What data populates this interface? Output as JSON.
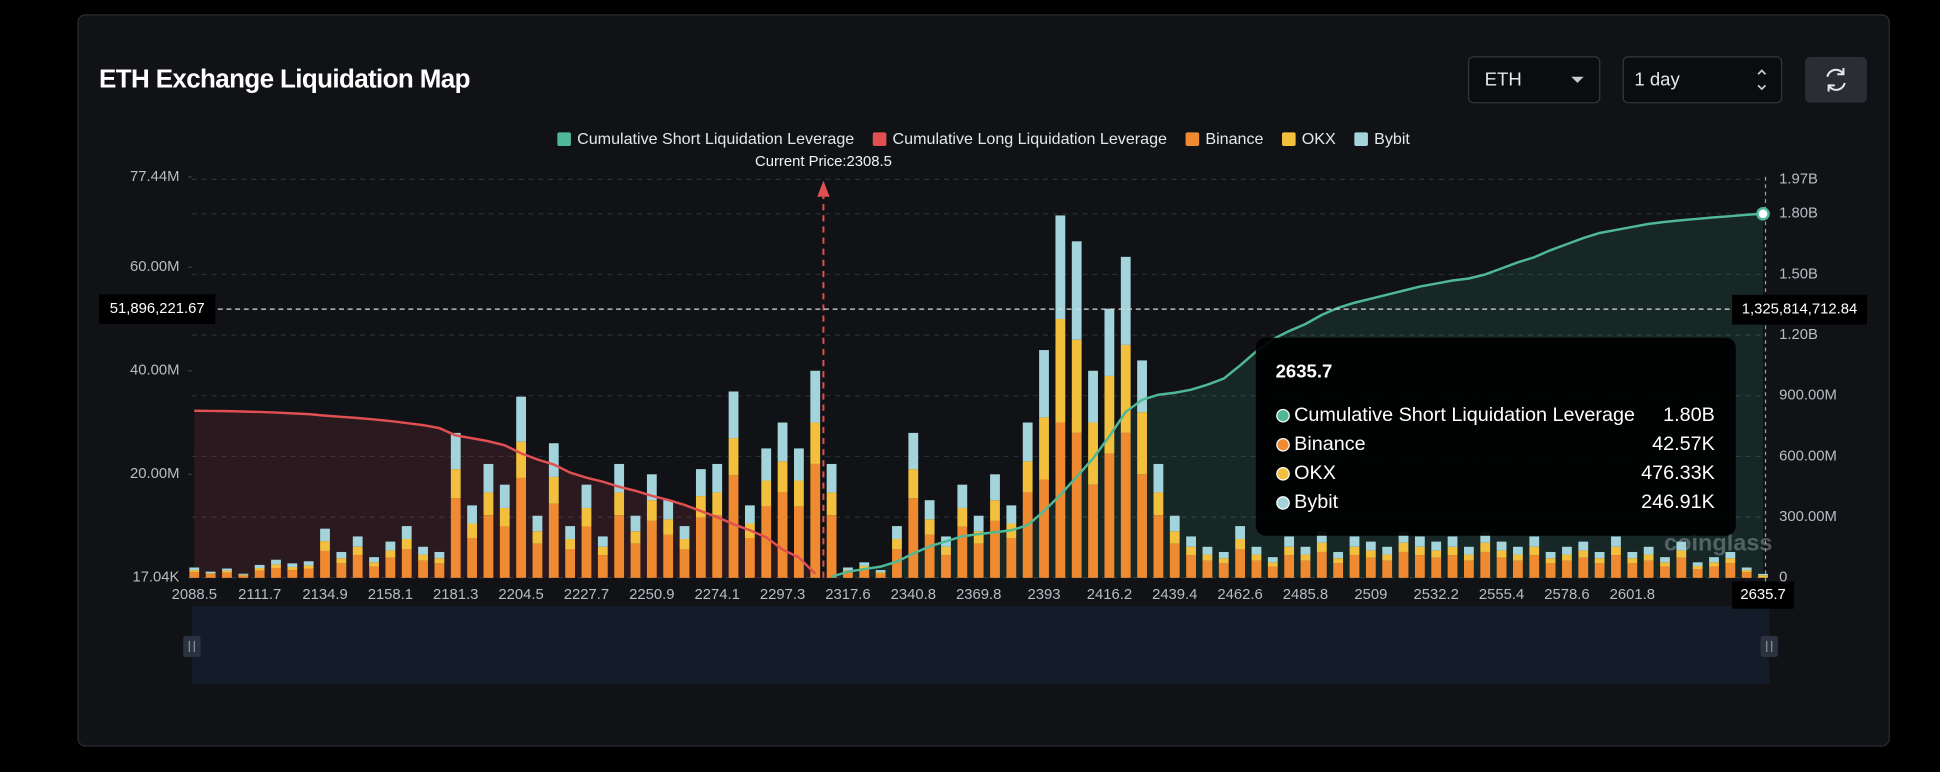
{
  "controls": {
    "symbol": "ETH",
    "interval": "1 day"
  },
  "chart_data": {
    "type": "bar",
    "stacked": true,
    "title": "ETH Exchange Liquidation Map",
    "annotation": "Current Price:2308.5",
    "watermark": "coinglass",
    "categories": [
      2088.5,
      null,
      null,
      null,
      2111.7,
      null,
      null,
      null,
      2134.9,
      null,
      null,
      null,
      2158.1,
      null,
      null,
      null,
      2181.3,
      null,
      null,
      null,
      2204.5,
      null,
      null,
      null,
      2227.7,
      null,
      null,
      null,
      2250.9,
      null,
      null,
      null,
      2274.1,
      null,
      null,
      null,
      2297.3,
      null,
      null,
      null,
      2317.6,
      null,
      null,
      null,
      2340.8,
      null,
      null,
      null,
      2369.8,
      null,
      null,
      null,
      2393,
      null,
      null,
      null,
      2416.2,
      null,
      null,
      null,
      2439.4,
      null,
      null,
      null,
      2462.6,
      null,
      null,
      null,
      2485.8,
      null,
      null,
      null,
      2509,
      null,
      null,
      null,
      2532.2,
      null,
      null,
      null,
      2555.4,
      null,
      null,
      null,
      2578.6,
      null,
      null,
      null,
      2601.8,
      null,
      null,
      null,
      null,
      null,
      null,
      null,
      2635.7
    ],
    "series": [
      {
        "name": "Cumulative Short Liquidation Leverage",
        "color": "#4fb896",
        "type": "line",
        "axis": "y2",
        "values": [
          null,
          null,
          null,
          null,
          null,
          null,
          null,
          null,
          null,
          null,
          null,
          null,
          null,
          null,
          null,
          null,
          null,
          null,
          null,
          null,
          null,
          null,
          null,
          null,
          null,
          null,
          null,
          null,
          null,
          null,
          null,
          null,
          null,
          null,
          null,
          null,
          null,
          null,
          null,
          5000000,
          30000000,
          43000000,
          55000000,
          80000000,
          120000000,
          155000000,
          180000000,
          205000000,
          216000000,
          225000000,
          235000000,
          260000000,
          330000000,
          410000000,
          500000000,
          590000000,
          700000000,
          820000000,
          880000000,
          905000000,
          915000000,
          930000000,
          955000000,
          985000000,
          1050000000,
          1120000000,
          1180000000,
          1220000000,
          1255000000,
          1300000000,
          1335000000,
          1360000000,
          1380000000,
          1400000000,
          1420000000,
          1440000000,
          1455000000,
          1470000000,
          1480000000,
          1500000000,
          1530000000,
          1560000000,
          1585000000,
          1620000000,
          1650000000,
          1680000000,
          1705000000,
          1720000000,
          1735000000,
          1750000000,
          1760000000,
          1768000000,
          1775000000,
          1782000000,
          1788000000,
          1795000000,
          1800000000
        ]
      },
      {
        "name": "Cumulative Long Liquidation Leverage",
        "color": "#e04f52",
        "type": "line",
        "axis": "y2",
        "values": [
          826000000,
          825000000,
          824000000,
          822000000,
          820000000,
          817000000,
          813000000,
          809000000,
          802000000,
          796000000,
          790000000,
          783000000,
          775000000,
          765000000,
          755000000,
          740000000,
          704000000,
          690000000,
          675000000,
          655000000,
          615000000,
          585000000,
          560000000,
          520000000,
          495000000,
          475000000,
          450000000,
          430000000,
          405000000,
          385000000,
          360000000,
          330000000,
          300000000,
          265000000,
          235000000,
          200000000,
          140000000,
          100000000,
          20000000,
          null,
          null,
          null,
          null,
          null,
          null,
          null,
          null,
          null,
          null,
          null,
          null,
          null,
          null,
          null,
          null,
          null,
          null,
          null,
          null,
          null,
          null,
          null,
          null,
          null,
          null,
          null,
          null,
          null,
          null,
          null,
          null,
          null,
          null,
          null,
          null,
          null,
          null,
          null,
          null,
          null,
          null,
          null,
          null,
          null,
          null,
          null,
          null,
          null,
          null,
          null,
          null,
          null,
          null,
          null,
          null,
          null,
          null
        ]
      },
      {
        "name": "Binance",
        "color": "#f08a31",
        "values": [
          1100000,
          700000,
          1000000,
          400000,
          1400000,
          1900000,
          1500000,
          1800000,
          5200000,
          2800000,
          4400000,
          2200000,
          3900000,
          5500000,
          3300000,
          2800000,
          15400000,
          7700000,
          12100000,
          9900000,
          19300000,
          6600000,
          14300000,
          5500000,
          9900000,
          4400000,
          12100000,
          6600000,
          11000000,
          8300000,
          5500000,
          11600000,
          12100000,
          19800000,
          7700000,
          13800000,
          16500000,
          13800000,
          22000000,
          12100000,
          1100000,
          1700000,
          800000,
          5500000,
          15400000,
          8300000,
          4400000,
          9900000,
          6600000,
          11000000,
          7700000,
          16500000,
          19000000,
          30000000,
          28000000,
          18000000,
          24000000,
          28000000,
          20000000,
          12100000,
          6600000,
          4400000,
          3300000,
          2800000,
          5500000,
          3300000,
          2200000,
          4400000,
          3300000,
          5000000,
          2800000,
          4400000,
          3900000,
          3300000,
          5000000,
          4400000,
          3900000,
          4400000,
          3300000,
          5000000,
          3900000,
          3300000,
          4400000,
          2800000,
          3300000,
          3900000,
          2800000,
          4400000,
          2800000,
          3300000,
          2200000,
          3900000,
          1700000,
          2200000,
          2800000,
          1100000,
          42570
        ]
      },
      {
        "name": "OKX",
        "color": "#f2c03c",
        "values": [
          400000,
          200000,
          400000,
          200000,
          500000,
          700000,
          600000,
          600000,
          1900000,
          1000000,
          1600000,
          800000,
          1400000,
          2000000,
          1200000,
          1000000,
          5600000,
          2800000,
          4400000,
          3600000,
          7000000,
          2400000,
          5200000,
          2000000,
          3600000,
          1600000,
          4400000,
          2400000,
          4000000,
          3000000,
          2000000,
          4200000,
          4400000,
          7200000,
          2800000,
          5000000,
          6000000,
          5000000,
          8000000,
          4400000,
          400000,
          600000,
          300000,
          2000000,
          5600000,
          3000000,
          1600000,
          3600000,
          2400000,
          4000000,
          2800000,
          6000000,
          12000000,
          20000000,
          18000000,
          12000000,
          15000000,
          17000000,
          12000000,
          4400000,
          2400000,
          1600000,
          1200000,
          1000000,
          2000000,
          1200000,
          800000,
          1600000,
          1200000,
          1800000,
          1000000,
          1600000,
          1400000,
          1200000,
          1800000,
          1600000,
          1400000,
          1600000,
          1200000,
          1800000,
          1400000,
          1200000,
          1600000,
          1000000,
          1200000,
          1400000,
          1000000,
          1600000,
          1000000,
          1200000,
          800000,
          1400000,
          600000,
          800000,
          1000000,
          400000,
          476330
        ]
      },
      {
        "name": "Bybit",
        "color": "#a3d4dc",
        "values": [
          500000,
          300000,
          400000,
          200000,
          600000,
          900000,
          700000,
          800000,
          2400000,
          1200000,
          2000000,
          1000000,
          1700000,
          2500000,
          1500000,
          1200000,
          7000000,
          3500000,
          5500000,
          4500000,
          8700000,
          3000000,
          6500000,
          2500000,
          4500000,
          2000000,
          5500000,
          3000000,
          5000000,
          3700000,
          2500000,
          5200000,
          5500000,
          9000000,
          3500000,
          6200000,
          7500000,
          6200000,
          10000000,
          5500000,
          500000,
          700000,
          400000,
          2500000,
          7000000,
          3700000,
          2000000,
          4500000,
          3000000,
          5000000,
          3500000,
          7500000,
          13000000,
          20000000,
          19000000,
          10000000,
          13000000,
          17000000,
          10000000,
          5500000,
          3000000,
          2000000,
          1500000,
          1200000,
          2500000,
          1500000,
          1000000,
          2000000,
          1500000,
          2200000,
          1200000,
          2000000,
          1700000,
          1500000,
          2200000,
          2000000,
          1700000,
          2000000,
          1500000,
          2200000,
          1700000,
          1500000,
          2000000,
          1200000,
          1500000,
          1700000,
          1200000,
          2000000,
          1200000,
          1500000,
          1000000,
          1700000,
          700000,
          1000000,
          1200000,
          500000,
          246910
        ]
      }
    ],
    "ylim": [
      17040,
      77440000
    ],
    "yticks": [
      {
        "value": 17040,
        "label": "17.04K"
      },
      {
        "value": 20000000,
        "label": "20.00M"
      },
      {
        "value": 40000000,
        "label": "40.00M"
      },
      {
        "value": 60000000,
        "label": "60.00M"
      },
      {
        "value": 77440000,
        "label": "77.44M"
      }
    ],
    "y2lim": [
      0,
      1970000000
    ],
    "y2ticks": [
      0,
      {
        "value": 300000000,
        "label": "300.00M"
      },
      {
        "value": 600000000,
        "label": "600.00M"
      },
      {
        "value": 900000000,
        "label": "900.00M"
      },
      {
        "value": 1200000000,
        "label": "1.20B"
      },
      {
        "value": 1500000000,
        "label": "1.50B"
      },
      {
        "value": 1800000000,
        "label": "1.80B"
      },
      {
        "value": 1970000000,
        "label": "1.97B"
      }
    ],
    "grid": true,
    "crosshair": {
      "y": {
        "value": 51896221.67,
        "label": "51,896,221.67"
      },
      "y2": {
        "value": 1325814712.84,
        "label": "1,325,814,712.84"
      }
    },
    "tooltip": {
      "title": "2635.7",
      "items": [
        {
          "name": "Cumulative Short Liquidation Leverage",
          "value": "1.80B"
        },
        {
          "name": "Binance",
          "value": "42.57K"
        },
        {
          "name": "OKX",
          "value": "476.33K"
        },
        {
          "name": "Bybit",
          "value": "246.91K"
        }
      ]
    }
  }
}
